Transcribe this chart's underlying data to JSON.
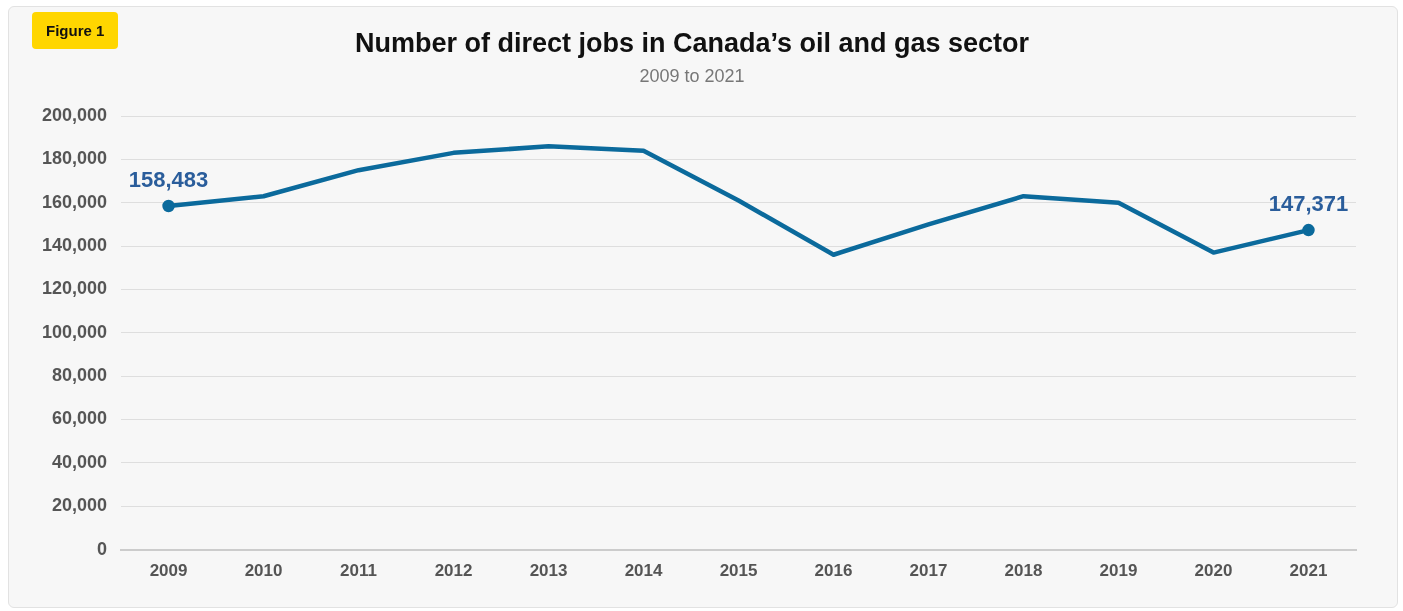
{
  "chart_data": {
    "type": "line",
    "title": "Number of direct jobs in Canada’s oil and gas sector",
    "subtitle": "2009 to 2021",
    "annotations": [
      "Figure 1"
    ],
    "categories": [
      "2009",
      "2010",
      "2011",
      "2012",
      "2013",
      "2014",
      "2015",
      "2016",
      "2017",
      "2018",
      "2019",
      "2020",
      "2021"
    ],
    "series": [
      {
        "color": "#0b6a9c",
        "values": [
          158483,
          163000,
          175000,
          183000,
          186000,
          184000,
          161000,
          136000,
          150000,
          163000,
          160000,
          137000,
          147371
        ],
        "value_labels": [
          "158,483",
          null,
          null,
          null,
          null,
          null,
          null,
          null,
          null,
          null,
          null,
          null,
          "147,371"
        ]
      }
    ],
    "ylim": [
      0,
      200000
    ],
    "yticks": [
      {
        "value": 0,
        "label": "0"
      },
      {
        "value": 20000,
        "label": "20,000"
      },
      {
        "value": 40000,
        "label": "40,000"
      },
      {
        "value": 60000,
        "label": "60,000"
      },
      {
        "value": 80000,
        "label": "80,000"
      },
      {
        "value": 100000,
        "label": "100,000"
      },
      {
        "value": 120000,
        "label": "120,000"
      },
      {
        "value": 140000,
        "label": "140,000"
      },
      {
        "value": 160000,
        "label": "160,000"
      },
      {
        "value": 180000,
        "label": "180,000"
      },
      {
        "value": 200000,
        "label": "200,000"
      }
    ],
    "grid": "y",
    "legend": false,
    "line_style": "solid"
  }
}
